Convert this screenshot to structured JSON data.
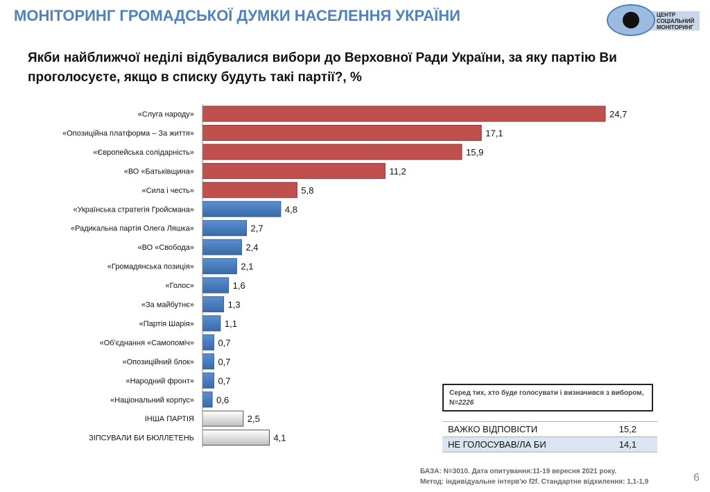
{
  "header": {
    "title": "МОНІТОРИНГ ГРОМАДСЬКОЇ ДУМКИ НАСЕЛЕННЯ УКРАЇНИ",
    "logo_text": [
      "ЦЕНТР",
      "СОЦІАЛЬНИЙ",
      "МОНІТОРИНГ"
    ]
  },
  "chart_data": {
    "type": "bar",
    "orientation": "horizontal",
    "title": "Якби найближчої неділі відбувалися вибори до Верховної Ради України, за яку партію Ви проголосуєте, якщо в списку будуть такі партії?, %",
    "categories": [
      "«Слуга народу»",
      "«Опозиційна платформа  – За життя»",
      "«Європейська солідарність»",
      "«ВО «Батьківщина»",
      "«Сила і честь»",
      "«Українська стратегія Гройсмана»",
      "«Радикальна партія Олега Ляшка»",
      "«ВО «Свобода»",
      "«Громадянська позиція»",
      "«Голос»",
      "«За майбутнє»",
      "«Партія Шарія»",
      "«Об'єднання «Самопоміч»",
      "«Опозиційний блок»",
      "«Народний фронт»",
      "«Національний корпус»",
      "ІНША ПАРТІЯ",
      "ЗІПСУВАЛИ БИ БЮЛЛЕТЕНЬ"
    ],
    "values": [
      24.7,
      17.1,
      15.9,
      11.2,
      5.8,
      4.8,
      2.7,
      2.4,
      2.1,
      1.6,
      1.3,
      1.1,
      0.7,
      0.7,
      0.7,
      0.6,
      2.5,
      4.1
    ],
    "labels": [
      "24,7",
      "17,1",
      "15,9",
      "11,2",
      "5,8",
      "4,8",
      "2,7",
      "2,4",
      "2,1",
      "1,6",
      "1,3",
      "1,1",
      "0,7",
      "0,7",
      "0,7",
      "0,6",
      "2,5",
      "4,1"
    ],
    "bar_groups": [
      "red",
      "red",
      "red",
      "red",
      "red",
      "blue",
      "blue",
      "blue",
      "blue",
      "blue",
      "blue",
      "blue",
      "blue",
      "blue",
      "blue",
      "blue",
      "gray",
      "gray"
    ],
    "colors": {
      "red": "#C0504D",
      "blue": "#4F81BD",
      "gray": "#D9D9D9"
    },
    "xlim": [
      0,
      25
    ],
    "grid": false
  },
  "note": {
    "text": "Серед тих, хто буде голосувати  і визначився  з вибором,  N=",
    "n": "2226"
  },
  "table": [
    {
      "label": "ВАЖКО ВІДПОВІСТИ",
      "value": "15,2"
    },
    {
      "label": "НЕ ГОЛОСУВАВ/ЛА БИ",
      "value": "14,1"
    }
  ],
  "footer": {
    "line1": "БАЗА: N=3010.  Дата опитування:11-19  вересня 2021 року.",
    "line2": "Метод: індивідуальне  інтерв'ю f2f. Стандартне відхилення:  1,1-1,9"
  },
  "page_number": "6"
}
